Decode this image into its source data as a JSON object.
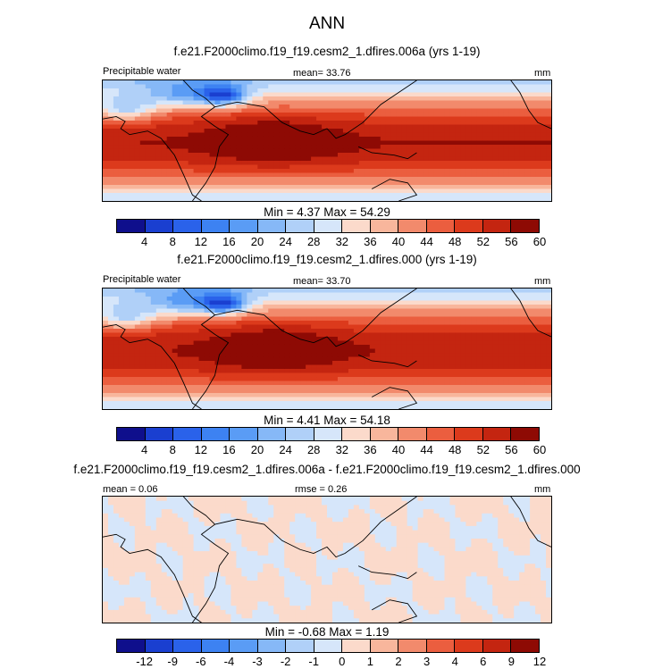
{
  "title": "ANN",
  "colors": {
    "abs": [
      "#0f0f8c",
      "#1a3fd0",
      "#2a62ea",
      "#3d82f2",
      "#5a9cf5",
      "#86b8f7",
      "#b0d0f8",
      "#d6e6fa",
      "#fbdacb",
      "#f8b69c",
      "#f28a6c",
      "#eb5e3f",
      "#dc3a1c",
      "#c42510",
      "#8e0a04"
    ],
    "diff": [
      "#0f0f8c",
      "#1a3fd0",
      "#2a62ea",
      "#3d82f2",
      "#5a9cf5",
      "#86b8f7",
      "#b0d0f8",
      "#d6e6fa",
      "#fbdacb",
      "#f8b69c",
      "#f28a6c",
      "#eb5e3f",
      "#dc3a1c",
      "#c42510",
      "#8e0a04"
    ]
  },
  "chart_data": [
    {
      "type": "heatmap",
      "subtitle": "f.e21.F2000climo.f19_f19.cesm2_1.dfires.006a (yrs 1-19)",
      "left_label": "Precipitable water",
      "center_label": "mean=  33.76",
      "right_label": "mm",
      "min_max": "Min =   4.37 Max =  54.29",
      "min": 4.37,
      "max": 54.29,
      "mean": 33.76,
      "colorbar_ticks": [
        "4",
        "8",
        "12",
        "16",
        "20",
        "24",
        "28",
        "32",
        "36",
        "40",
        "44",
        "48",
        "52",
        "56",
        "60"
      ],
      "palette": "abs"
    },
    {
      "type": "heatmap",
      "subtitle": "f.e21.F2000climo.f19_f19.cesm2_1.dfires.000 (yrs 1-19)",
      "left_label": "Precipitable water",
      "center_label": "mean=  33.70",
      "right_label": "mm",
      "min_max": "Min =   4.41 Max =  54.18",
      "min": 4.41,
      "max": 54.18,
      "mean": 33.7,
      "colorbar_ticks": [
        "4",
        "8",
        "12",
        "16",
        "20",
        "24",
        "28",
        "32",
        "36",
        "40",
        "44",
        "48",
        "52",
        "56",
        "60"
      ],
      "palette": "abs"
    },
    {
      "type": "heatmap",
      "subtitle": "f.e21.F2000climo.f19_f19.cesm2_1.dfires.006a - f.e21.F2000climo.f19_f19.cesm2_1.dfires.000",
      "left_label": "mean =   0.06",
      "center_label": "rmse =   0.26",
      "right_label": "mm",
      "min_max": "Min =  -0.68 Max =   1.19",
      "min": -0.68,
      "max": 1.19,
      "mean": 0.06,
      "rmse": 0.26,
      "colorbar_ticks": [
        "-12",
        "-9",
        "-6",
        "-4",
        "-3",
        "-2",
        "-1",
        "0",
        "1",
        "2",
        "3",
        "4",
        "6",
        "9",
        "12"
      ],
      "palette": "diff"
    }
  ]
}
